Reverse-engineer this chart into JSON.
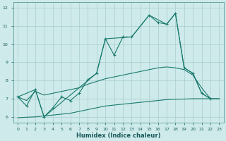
{
  "xlabel": "Humidex (Indice chaleur)",
  "background_color": "#ceeaea",
  "grid_color": "#aacece",
  "line_color": "#1a7a6e",
  "xlim": [
    -0.5,
    23.5
  ],
  "ylim": [
    5.7,
    12.3
  ],
  "yticks": [
    6,
    7,
    8,
    9,
    10,
    11,
    12
  ],
  "xticks": [
    0,
    1,
    2,
    3,
    4,
    5,
    6,
    7,
    8,
    9,
    10,
    11,
    12,
    13,
    14,
    15,
    16,
    17,
    18,
    19,
    20,
    21,
    22,
    23
  ],
  "line1_x": [
    0,
    1,
    2,
    3,
    4,
    5,
    6,
    7,
    8,
    9,
    10,
    11,
    12,
    13,
    15,
    16,
    17,
    18,
    19,
    20,
    21,
    22
  ],
  "line1_y": [
    7.1,
    6.6,
    7.5,
    6.0,
    6.5,
    7.1,
    6.9,
    7.3,
    8.05,
    8.4,
    10.3,
    9.4,
    10.4,
    10.4,
    11.6,
    11.2,
    11.1,
    11.7,
    8.7,
    8.4,
    7.3,
    7.0
  ],
  "line2_x": [
    0,
    2,
    3,
    9,
    10,
    13,
    15,
    17,
    18,
    19,
    20,
    21,
    22
  ],
  "line2_y": [
    7.1,
    7.5,
    6.0,
    8.4,
    10.3,
    10.4,
    11.6,
    11.1,
    11.7,
    8.7,
    8.4,
    7.3,
    7.0
  ],
  "line3_x": [
    0,
    1,
    2,
    3,
    4,
    5,
    6,
    7,
    8,
    9,
    10,
    11,
    12,
    13,
    14,
    15,
    16,
    17,
    18,
    19,
    20,
    21,
    22,
    23
  ],
  "line3_y": [
    7.1,
    6.9,
    7.4,
    7.2,
    7.3,
    7.4,
    7.5,
    7.6,
    7.8,
    7.95,
    8.1,
    8.2,
    8.3,
    8.4,
    8.5,
    8.6,
    8.7,
    8.75,
    8.7,
    8.6,
    8.3,
    7.6,
    7.0,
    7.0
  ],
  "line4_x": [
    0,
    1,
    2,
    3,
    4,
    5,
    6,
    7,
    8,
    9,
    10,
    11,
    12,
    13,
    14,
    15,
    16,
    17,
    18,
    19,
    20,
    21,
    22,
    23
  ],
  "line4_y": [
    5.95,
    5.98,
    6.0,
    6.05,
    6.1,
    6.15,
    6.2,
    6.3,
    6.4,
    6.5,
    6.6,
    6.65,
    6.7,
    6.75,
    6.8,
    6.85,
    6.9,
    6.95,
    6.97,
    6.98,
    7.0,
    7.0,
    7.0,
    7.0
  ]
}
